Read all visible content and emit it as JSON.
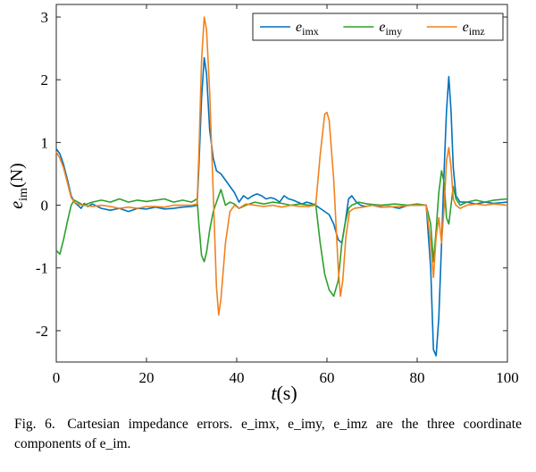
{
  "chart_data": {
    "type": "line",
    "title": "",
    "xlabel": "t(s)",
    "ylabel": "e_im(N)",
    "xlim": [
      0,
      100
    ],
    "ylim": [
      -2.5,
      3.2
    ],
    "x_ticks": [
      0,
      20,
      40,
      60,
      80,
      100
    ],
    "x_tick_labels": [
      "0",
      "20",
      "40",
      "60",
      "80",
      "100"
    ],
    "y_ticks": [
      -2,
      -1,
      0,
      1,
      2,
      3
    ],
    "y_tick_labels": [
      "-2",
      "-1",
      "0",
      "1",
      "2",
      "3"
    ],
    "grid": false,
    "legend_position": "top-right",
    "series": [
      {
        "name": "e_imx",
        "color": "#0072BD",
        "points": [
          [
            0,
            0.9
          ],
          [
            0.8,
            0.82
          ],
          [
            1.6,
            0.65
          ],
          [
            2.5,
            0.4
          ],
          [
            3.3,
            0.15
          ],
          [
            4,
            0.05
          ],
          [
            4.8,
            0.0
          ],
          [
            5.5,
            -0.05
          ],
          [
            6.2,
            0.03
          ],
          [
            7,
            -0.02
          ],
          [
            8,
            0.02
          ],
          [
            10,
            -0.05
          ],
          [
            12,
            -0.08
          ],
          [
            14,
            -0.05
          ],
          [
            16,
            -0.1
          ],
          [
            18,
            -0.05
          ],
          [
            20,
            -0.06
          ],
          [
            22,
            -0.03
          ],
          [
            24,
            -0.06
          ],
          [
            26,
            -0.05
          ],
          [
            28,
            -0.03
          ],
          [
            30,
            -0.02
          ],
          [
            31.2,
            0.0
          ],
          [
            31.6,
            0.6
          ],
          [
            32.2,
            1.7
          ],
          [
            32.8,
            2.35
          ],
          [
            33.3,
            2.1
          ],
          [
            34,
            1.2
          ],
          [
            34.8,
            0.75
          ],
          [
            35.5,
            0.55
          ],
          [
            36.5,
            0.5
          ],
          [
            37.5,
            0.4
          ],
          [
            38.5,
            0.3
          ],
          [
            39.5,
            0.2
          ],
          [
            40.5,
            0.05
          ],
          [
            41.5,
            0.15
          ],
          [
            42.5,
            0.1
          ],
          [
            43.5,
            0.15
          ],
          [
            44.5,
            0.18
          ],
          [
            45.5,
            0.15
          ],
          [
            46.5,
            0.1
          ],
          [
            47.5,
            0.12
          ],
          [
            48.5,
            0.1
          ],
          [
            49.5,
            0.05
          ],
          [
            50.5,
            0.15
          ],
          [
            51.5,
            0.1
          ],
          [
            52.5,
            0.08
          ],
          [
            53.5,
            0.05
          ],
          [
            54.5,
            0.02
          ],
          [
            55.5,
            0.05
          ],
          [
            56.5,
            0.03
          ],
          [
            57.5,
            0.0
          ],
          [
            58.5,
            -0.05
          ],
          [
            59.5,
            -0.1
          ],
          [
            60.5,
            -0.15
          ],
          [
            61.5,
            -0.3
          ],
          [
            62.5,
            -0.55
          ],
          [
            63.3,
            -0.6
          ],
          [
            64,
            -0.3
          ],
          [
            64.8,
            0.1
          ],
          [
            65.5,
            0.15
          ],
          [
            66.5,
            0.05
          ],
          [
            67.5,
            0.0
          ],
          [
            68.5,
            -0.02
          ],
          [
            70,
            0.0
          ],
          [
            72,
            -0.03
          ],
          [
            74,
            -0.02
          ],
          [
            76,
            -0.05
          ],
          [
            78,
            0.0
          ],
          [
            80,
            0.0
          ],
          [
            82,
            0.0
          ],
          [
            83,
            -1.0
          ],
          [
            83.6,
            -2.3
          ],
          [
            84.2,
            -2.4
          ],
          [
            84.8,
            -1.8
          ],
          [
            85.4,
            -0.6
          ],
          [
            86.0,
            0.6
          ],
          [
            86.5,
            1.5
          ],
          [
            87.0,
            2.05
          ],
          [
            87.5,
            1.5
          ],
          [
            88.0,
            0.6
          ],
          [
            88.6,
            0.15
          ],
          [
            89.5,
            0.05
          ],
          [
            91,
            0.05
          ],
          [
            93,
            0.02
          ],
          [
            95,
            0.05
          ],
          [
            97,
            0.03
          ],
          [
            100,
            0.05
          ]
        ]
      },
      {
        "name": "e_imy",
        "color": "#2CA02C",
        "points": [
          [
            0,
            -0.72
          ],
          [
            0.8,
            -0.78
          ],
          [
            1.6,
            -0.55
          ],
          [
            2.5,
            -0.25
          ],
          [
            3.3,
            0.0
          ],
          [
            4,
            0.08
          ],
          [
            4.8,
            0.05
          ],
          [
            6,
            0.0
          ],
          [
            8,
            0.05
          ],
          [
            10,
            0.08
          ],
          [
            12,
            0.05
          ],
          [
            14,
            0.1
          ],
          [
            16,
            0.05
          ],
          [
            18,
            0.08
          ],
          [
            20,
            0.06
          ],
          [
            22,
            0.08
          ],
          [
            24,
            0.1
          ],
          [
            26,
            0.05
          ],
          [
            28,
            0.08
          ],
          [
            30,
            0.05
          ],
          [
            31.2,
            0.1
          ],
          [
            31.6,
            -0.3
          ],
          [
            32.2,
            -0.8
          ],
          [
            32.8,
            -0.9
          ],
          [
            33.3,
            -0.75
          ],
          [
            34,
            -0.4
          ],
          [
            34.8,
            -0.1
          ],
          [
            35.5,
            0.05
          ],
          [
            36.5,
            0.25
          ],
          [
            37.5,
            0.0
          ],
          [
            38.5,
            0.05
          ],
          [
            39.5,
            0.02
          ],
          [
            40.5,
            -0.05
          ],
          [
            42,
            0.0
          ],
          [
            44,
            0.05
          ],
          [
            46,
            0.02
          ],
          [
            48,
            0.05
          ],
          [
            50,
            0.03
          ],
          [
            52,
            0.0
          ],
          [
            54,
            0.02
          ],
          [
            56,
            0.0
          ],
          [
            57.5,
            0.02
          ],
          [
            58.5,
            -0.6
          ],
          [
            59.5,
            -1.1
          ],
          [
            60.5,
            -1.35
          ],
          [
            61.5,
            -1.45
          ],
          [
            62.5,
            -1.2
          ],
          [
            63.3,
            -0.6
          ],
          [
            64,
            -0.3
          ],
          [
            64.8,
            -0.05
          ],
          [
            65.5,
            0.0
          ],
          [
            67,
            0.05
          ],
          [
            69,
            0.02
          ],
          [
            72,
            0.0
          ],
          [
            75,
            0.02
          ],
          [
            78,
            0.0
          ],
          [
            80,
            0.02
          ],
          [
            82,
            0.0
          ],
          [
            83,
            -0.3
          ],
          [
            83.6,
            -0.9
          ],
          [
            84.2,
            -0.4
          ],
          [
            84.8,
            0.2
          ],
          [
            85.4,
            0.55
          ],
          [
            86.0,
            0.35
          ],
          [
            86.5,
            -0.2
          ],
          [
            87.0,
            -0.3
          ],
          [
            87.5,
            0.0
          ],
          [
            88.0,
            0.3
          ],
          [
            88.6,
            0.1
          ],
          [
            89.5,
            0.0
          ],
          [
            91,
            0.05
          ],
          [
            93,
            0.08
          ],
          [
            95,
            0.05
          ],
          [
            97,
            0.08
          ],
          [
            100,
            0.1
          ]
        ]
      },
      {
        "name": "e_imz",
        "color": "#F0821E",
        "points": [
          [
            0,
            0.85
          ],
          [
            0.8,
            0.75
          ],
          [
            1.6,
            0.6
          ],
          [
            2.5,
            0.35
          ],
          [
            3.3,
            0.12
          ],
          [
            4,
            0.05
          ],
          [
            4.8,
            0.02
          ],
          [
            6,
            0.0
          ],
          [
            8,
            -0.02
          ],
          [
            10,
            0.0
          ],
          [
            12,
            -0.02
          ],
          [
            14,
            -0.05
          ],
          [
            16,
            -0.03
          ],
          [
            18,
            -0.05
          ],
          [
            20,
            -0.02
          ],
          [
            22,
            -0.02
          ],
          [
            24,
            -0.03
          ],
          [
            26,
            0.0
          ],
          [
            28,
            0.0
          ],
          [
            30,
            0.0
          ],
          [
            31.2,
            0.02
          ],
          [
            31.6,
            0.8
          ],
          [
            32.2,
            2.3
          ],
          [
            32.8,
            3.0
          ],
          [
            33.3,
            2.8
          ],
          [
            34,
            1.8
          ],
          [
            34.8,
            0.2
          ],
          [
            35.5,
            -1.3
          ],
          [
            36.0,
            -1.75
          ],
          [
            36.5,
            -1.5
          ],
          [
            37.5,
            -0.6
          ],
          [
            38.5,
            -0.1
          ],
          [
            39.5,
            0.0
          ],
          [
            40.5,
            -0.05
          ],
          [
            42,
            0.02
          ],
          [
            44,
            0.0
          ],
          [
            46,
            -0.02
          ],
          [
            48,
            0.0
          ],
          [
            50,
            -0.03
          ],
          [
            52,
            0.0
          ],
          [
            54,
            -0.02
          ],
          [
            56,
            -0.02
          ],
          [
            57.5,
            0.0
          ],
          [
            58.5,
            0.8
          ],
          [
            59.5,
            1.45
          ],
          [
            60.0,
            1.48
          ],
          [
            60.5,
            1.35
          ],
          [
            61.5,
            0.4
          ],
          [
            62.5,
            -1.0
          ],
          [
            63.0,
            -1.45
          ],
          [
            63.5,
            -1.2
          ],
          [
            64.2,
            -0.5
          ],
          [
            65,
            -0.1
          ],
          [
            66,
            -0.05
          ],
          [
            68,
            -0.03
          ],
          [
            70,
            0.0
          ],
          [
            73,
            -0.03
          ],
          [
            76,
            -0.02
          ],
          [
            79,
            0.0
          ],
          [
            82,
            0.0
          ],
          [
            83,
            -0.6
          ],
          [
            83.6,
            -1.15
          ],
          [
            84.2,
            -0.5
          ],
          [
            84.8,
            -0.2
          ],
          [
            85.4,
            -0.6
          ],
          [
            86.0,
            0.0
          ],
          [
            86.5,
            0.7
          ],
          [
            87.0,
            0.92
          ],
          [
            87.5,
            0.6
          ],
          [
            88.0,
            0.1
          ],
          [
            88.6,
            0.0
          ],
          [
            89.5,
            -0.05
          ],
          [
            91,
            0.0
          ],
          [
            93,
            0.02
          ],
          [
            95,
            0.0
          ],
          [
            97,
            0.02
          ],
          [
            100,
            0.0
          ]
        ]
      }
    ]
  },
  "caption": {
    "label": "Fig. 6.",
    "text": "Cartesian impedance errors. e_imx, e_imy, e_imz are the three coordinate components of e_im."
  }
}
